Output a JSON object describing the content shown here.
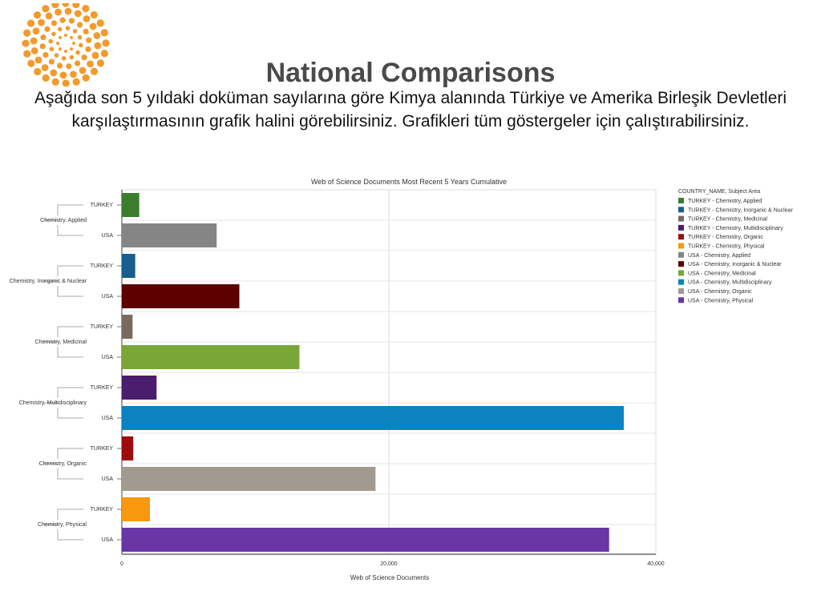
{
  "slide": {
    "title": "National Comparisons",
    "subtitle": "Aşağıda son 5 yıldaki doküman sayılarına göre Kimya alanında Türkiye ve Amerika Birleşik Devletleri karşılaştırmasının grafik halini görebilirsiniz. Grafikleri tüm göstergeler için çalıştırabilirsiniz.",
    "logo_color": "#f29a2e"
  },
  "chart_data": {
    "type": "bar",
    "orientation": "horizontal",
    "title": "Web of Science Documents Most Recent 5 Years Cumulative",
    "xlabel": "Web of Science Documents",
    "ylabel": "",
    "xlim": [
      0,
      40000
    ],
    "xticks": [
      0,
      20000,
      40000
    ],
    "xtick_labels": [
      "0",
      "20,000",
      "40,000"
    ],
    "grid": true,
    "legend_title": "COUNTRY_NAME, Subject Area",
    "legend_position": "right",
    "groups": [
      {
        "label": "Chemistry, Applied",
        "bars": [
          {
            "country": "TURKEY",
            "series": "TURKEY - Chemistry, Applied",
            "value": 1300,
            "color": "#3a7d2c"
          },
          {
            "country": "USA",
            "series": "USA - Chemistry, Applied",
            "value": 7100,
            "color": "#858585"
          }
        ]
      },
      {
        "label": "Chemistry, Inorganic & Nuclear",
        "bars": [
          {
            "country": "TURKEY",
            "series": "TURKEY - Chemistry, Inorganic & Nuclear",
            "value": 1000,
            "color": "#1a5d8f"
          },
          {
            "country": "USA",
            "series": "USA - Chemistry, Inorganic & Nuclear",
            "value": 8800,
            "color": "#5c0000"
          }
        ]
      },
      {
        "label": "Chemistry, Medicinal",
        "bars": [
          {
            "country": "TURKEY",
            "series": "TURKEY - Chemistry, Medicinal",
            "value": 800,
            "color": "#7a6a5e"
          },
          {
            "country": "USA",
            "series": "USA - Chemistry, Medicinal",
            "value": 13300,
            "color": "#79a637"
          }
        ]
      },
      {
        "label": "Chemistry, Multidisciplinary",
        "bars": [
          {
            "country": "TURKEY",
            "series": "TURKEY - Chemistry, Multidisciplinary",
            "value": 2600,
            "color": "#4b1d6e"
          },
          {
            "country": "USA",
            "series": "USA - Chemistry, Multidisciplinary",
            "value": 37600,
            "color": "#0b83c1"
          }
        ]
      },
      {
        "label": "Chemistry, Organic",
        "bars": [
          {
            "country": "TURKEY",
            "series": "TURKEY - Chemistry, Organic",
            "value": 850,
            "color": "#9e0b0b"
          },
          {
            "country": "USA",
            "series": "USA - Chemistry, Organic",
            "value": 19000,
            "color": "#a29a90"
          }
        ]
      },
      {
        "label": "Chemistry, Physical",
        "bars": [
          {
            "country": "TURKEY",
            "series": "TURKEY - Chemistry, Physical",
            "value": 2100,
            "color": "#f7980d"
          },
          {
            "country": "USA",
            "series": "USA - Chemistry, Physical",
            "value": 36500,
            "color": "#6a35a5"
          }
        ]
      }
    ],
    "legend": [
      {
        "label": "TURKEY - Chemistry, Applied",
        "color": "#3a7d2c"
      },
      {
        "label": "TURKEY - Chemistry, Inorganic & Nuclear",
        "color": "#1a5d8f"
      },
      {
        "label": "TURKEY - Chemistry, Medicinal",
        "color": "#7a6a5e"
      },
      {
        "label": "TURKEY - Chemistry, Multidisciplinary",
        "color": "#4b1d6e"
      },
      {
        "label": "TURKEY - Chemistry, Organic",
        "color": "#9e0b0b"
      },
      {
        "label": "TURKEY - Chemistry, Physical",
        "color": "#f7980d"
      },
      {
        "label": "USA - Chemistry, Applied",
        "color": "#858585"
      },
      {
        "label": "USA - Chemistry, Inorganic & Nuclear",
        "color": "#5c0000"
      },
      {
        "label": "USA - Chemistry, Medicinal",
        "color": "#79a637"
      },
      {
        "label": "USA - Chemistry, Multidisciplinary",
        "color": "#0b83c1"
      },
      {
        "label": "USA - Chemistry, Organic",
        "color": "#a29a90"
      },
      {
        "label": "USA - Chemistry, Physical",
        "color": "#6a35a5"
      }
    ]
  }
}
